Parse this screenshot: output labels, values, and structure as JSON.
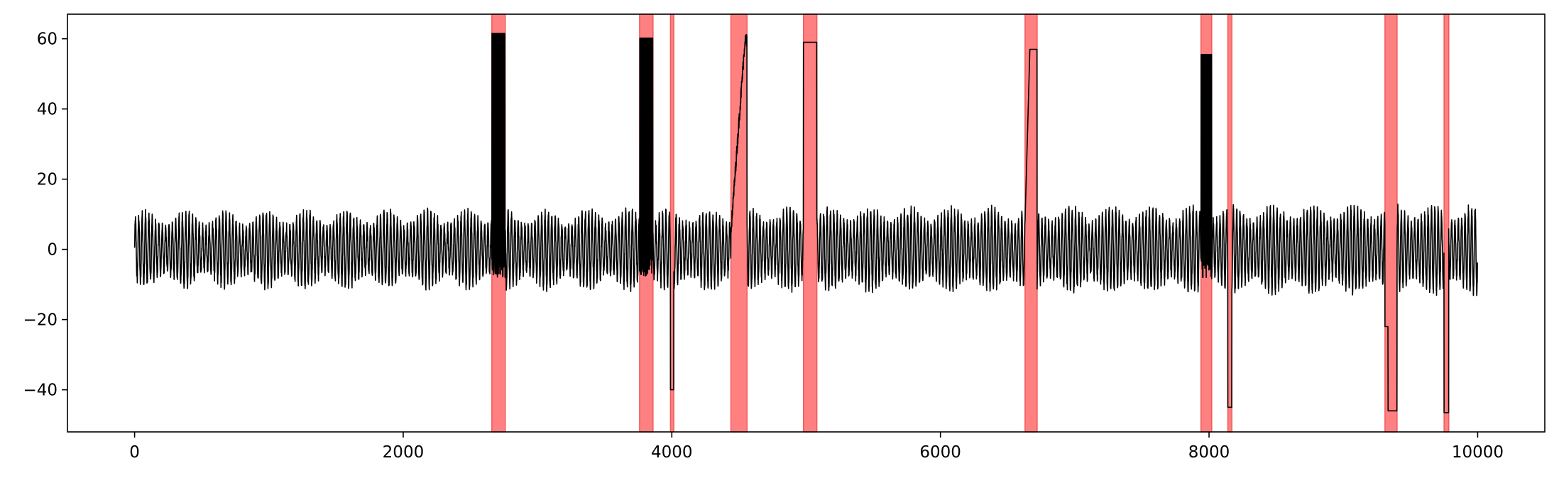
{
  "chart_data": {
    "type": "line",
    "title": "",
    "xlabel": "",
    "ylabel": "",
    "xlim": [
      -500,
      10500
    ],
    "ylim": [
      -52,
      67
    ],
    "grid": false,
    "legend": "none",
    "xticks": [
      0,
      2000,
      4000,
      6000,
      8000,
      10000
    ],
    "xtick_labels": [
      "0",
      "2000",
      "4000",
      "6000",
      "8000",
      "10000"
    ],
    "yticks": [
      -40,
      -20,
      0,
      20,
      40,
      60
    ],
    "ytick_labels": [
      "−40",
      "−20",
      "0",
      "20",
      "40",
      "60"
    ],
    "colors": {
      "line": "#000000",
      "span_fill": "#ff8080",
      "span_edge": "#f05a5a"
    },
    "signal": {
      "n_points": 10000,
      "description_of_base": "fast oscillation with amplitude modulated between about 6 and 13",
      "anomalies": [
        {
          "kind": "noisy_high",
          "start": 2660,
          "end": 2760,
          "value": 61.5
        },
        {
          "kind": "noisy_high",
          "start": 3760,
          "end": 3860,
          "value": 60.2
        },
        {
          "kind": "level",
          "start": 3990,
          "end": 4015,
          "value": -40
        },
        {
          "kind": "ramp",
          "start": 4440,
          "end": 4560,
          "from": 5,
          "to": 59.5
        },
        {
          "kind": "level",
          "start": 4980,
          "end": 5080,
          "value": 59
        },
        {
          "kind": "ramp_plateau",
          "start": 6630,
          "end": 6720,
          "from": 8,
          "to": 57
        },
        {
          "kind": "noisy_high",
          "start": 7940,
          "end": 8020,
          "value": 55.5
        },
        {
          "kind": "level",
          "start": 8140,
          "end": 8170,
          "value": -45
        },
        {
          "kind": "drop_plateau",
          "start": 9310,
          "end": 9400,
          "from": -22,
          "to": -46
        },
        {
          "kind": "level",
          "start": 9750,
          "end": 9785,
          "value": -46.5
        }
      ]
    },
    "highlight_spans": [
      [
        2660,
        2760
      ],
      [
        3760,
        3860
      ],
      [
        3990,
        4015
      ],
      [
        4440,
        4560
      ],
      [
        4980,
        5080
      ],
      [
        6630,
        6720
      ],
      [
        7940,
        8020
      ],
      [
        8140,
        8170
      ],
      [
        9310,
        9400
      ],
      [
        9750,
        9785
      ]
    ]
  }
}
